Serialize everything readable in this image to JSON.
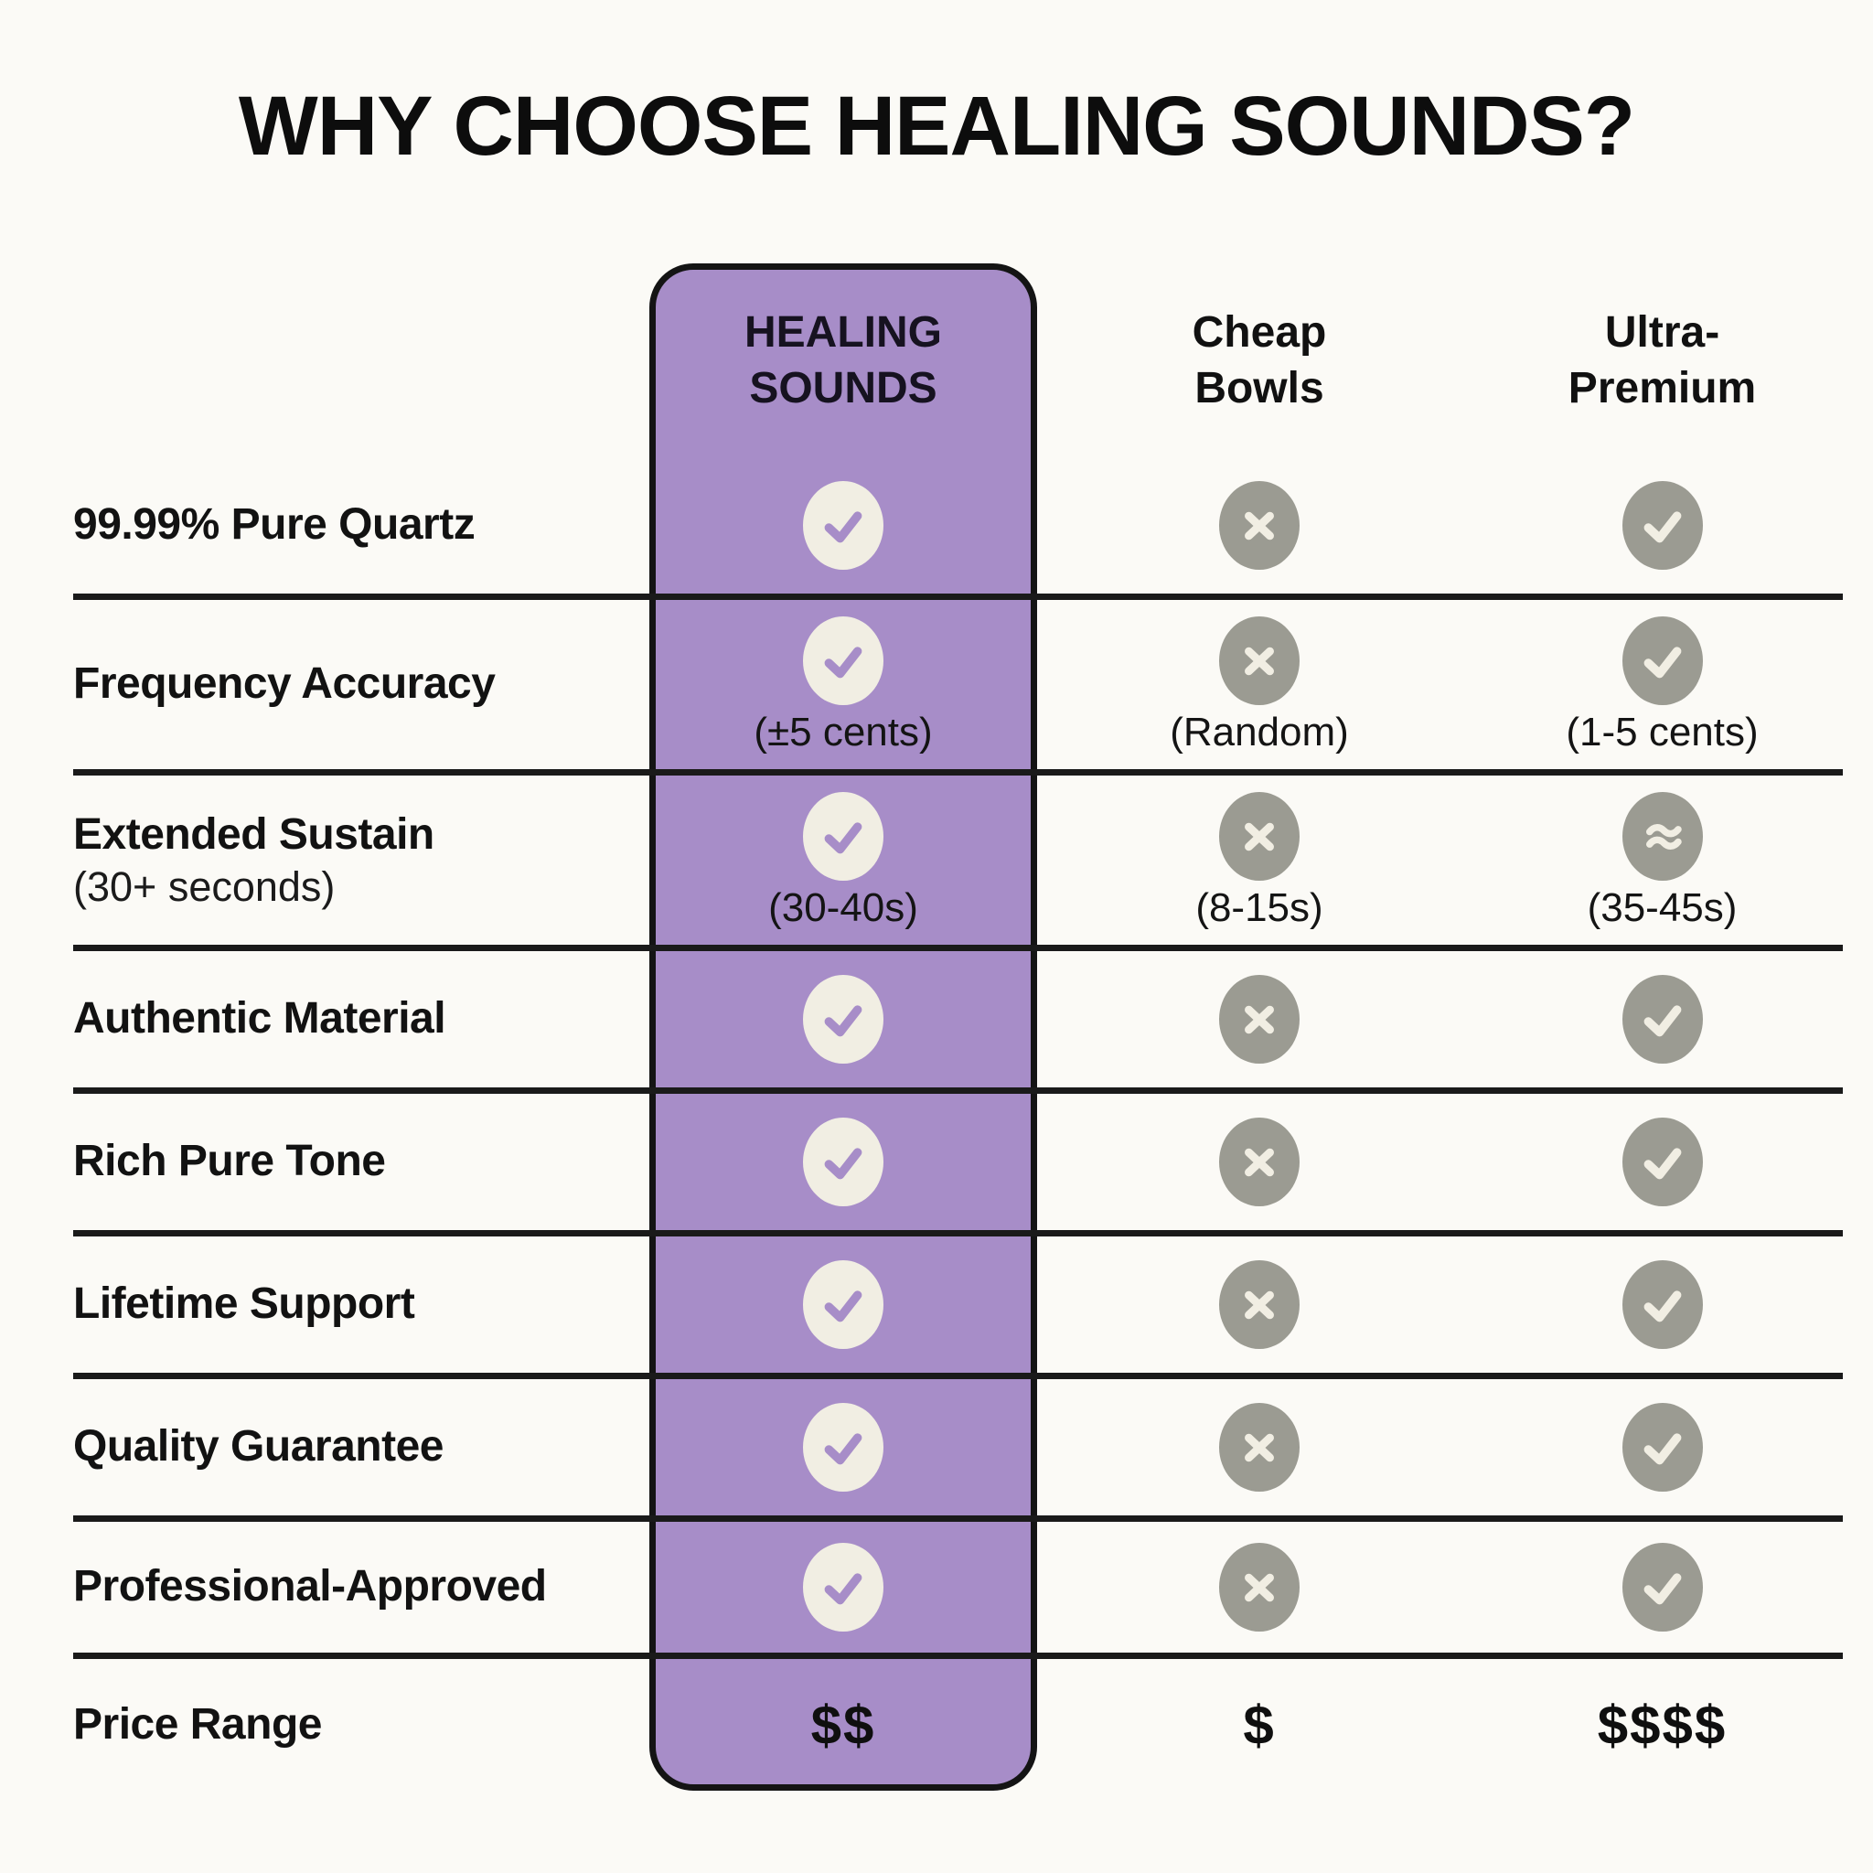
{
  "title": "WHY CHOOSE HEALING SOUNDS?",
  "columns": [
    {
      "id": "healing",
      "name": "HEALING SOUNDS",
      "highlighted": true
    },
    {
      "id": "cheap",
      "name": "Cheap Bowls",
      "highlighted": false
    },
    {
      "id": "ultra",
      "name": "Ultra-Premium",
      "highlighted": false
    }
  ],
  "colors": {
    "purple": "#a78dc8",
    "cream": "#f1eee3",
    "gray": "#9b9b92",
    "ink": "#141414",
    "background": "#fbfaf6"
  },
  "icon_legend": {
    "check": "check-icon",
    "cross": "cross-icon",
    "approx": "approx-icon"
  },
  "rows": [
    {
      "label": "99.99% Pure Quartz",
      "cells": [
        {
          "icon": "check"
        },
        {
          "icon": "cross"
        },
        {
          "icon": "check"
        }
      ]
    },
    {
      "label": "Frequency Accuracy",
      "cells": [
        {
          "icon": "check",
          "note": "(±5 cents)"
        },
        {
          "icon": "cross",
          "note": "(Random)"
        },
        {
          "icon": "check",
          "note": "(1-5 cents)"
        }
      ]
    },
    {
      "label": "Extended Sustain",
      "sublabel": "(30+ seconds)",
      "cells": [
        {
          "icon": "check",
          "note": "(30-40s)"
        },
        {
          "icon": "cross",
          "note": "(8-15s)"
        },
        {
          "icon": "approx",
          "note": "(35-45s)"
        }
      ]
    },
    {
      "label": "Authentic Material",
      "cells": [
        {
          "icon": "check"
        },
        {
          "icon": "cross"
        },
        {
          "icon": "check"
        }
      ]
    },
    {
      "label": "Rich Pure Tone",
      "cells": [
        {
          "icon": "check"
        },
        {
          "icon": "cross"
        },
        {
          "icon": "check"
        }
      ]
    },
    {
      "label": "Lifetime Support",
      "cells": [
        {
          "icon": "check"
        },
        {
          "icon": "cross"
        },
        {
          "icon": "check"
        }
      ]
    },
    {
      "label": "Quality Guarantee",
      "cells": [
        {
          "icon": "check"
        },
        {
          "icon": "cross"
        },
        {
          "icon": "check"
        }
      ]
    },
    {
      "label": "Professional-Approved",
      "cells": [
        {
          "icon": "check"
        },
        {
          "icon": "cross"
        },
        {
          "icon": "check"
        }
      ]
    },
    {
      "label": "Price Range",
      "kind": "price",
      "cells": [
        {
          "text": "$$"
        },
        {
          "text": "$"
        },
        {
          "text": "$$$$"
        }
      ]
    }
  ]
}
